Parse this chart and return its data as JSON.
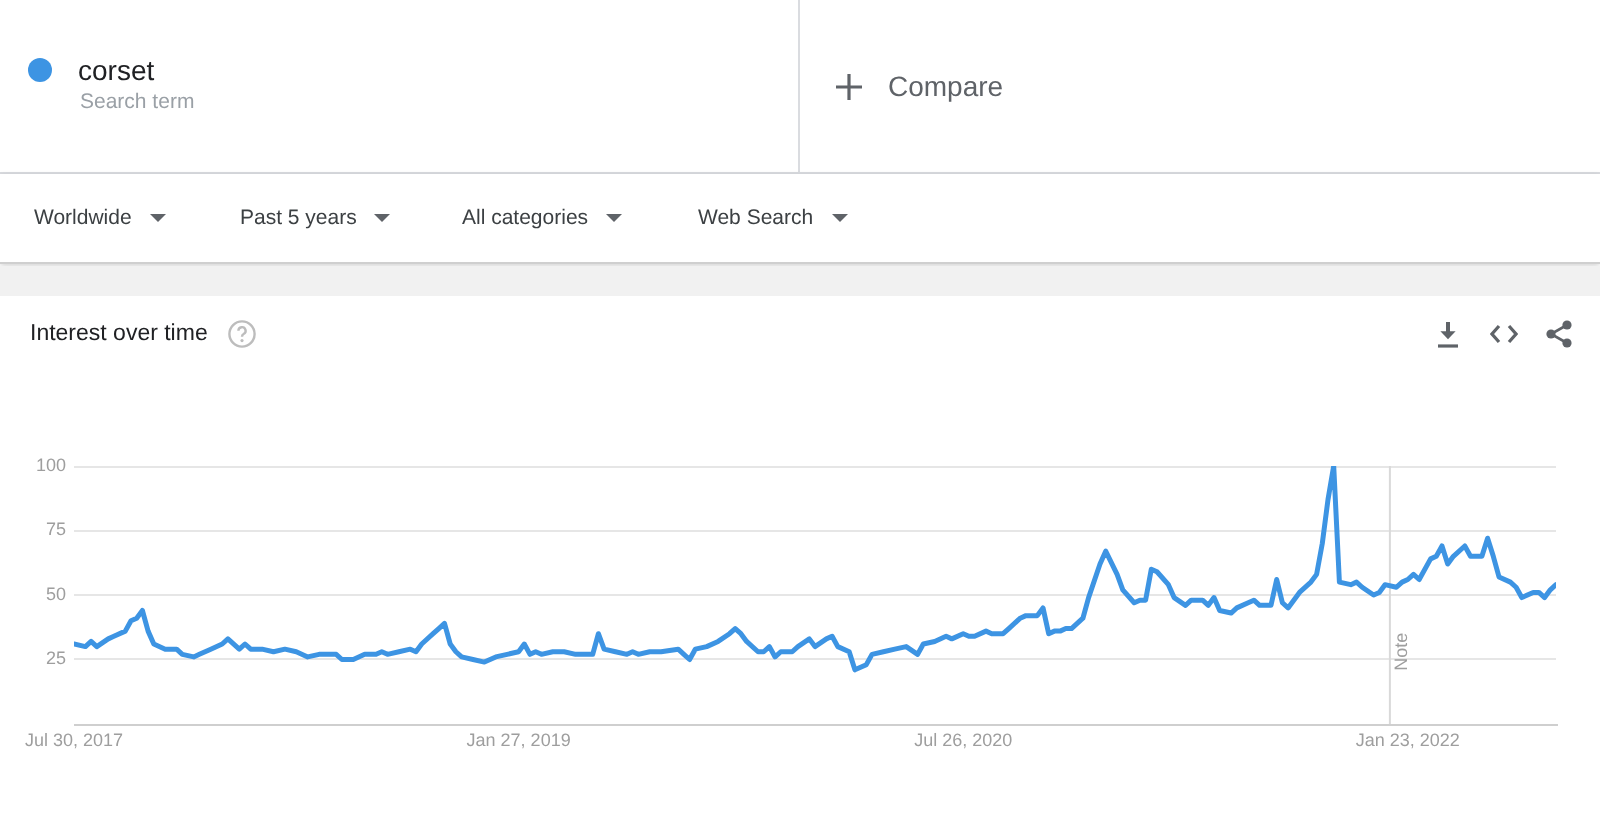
{
  "chart_data": {
    "type": "line",
    "title": "Interest over time",
    "x": [
      "2017-07-30",
      "2017-08-13",
      "2017-08-20",
      "2017-08-27",
      "2017-09-10",
      "2017-09-17",
      "2017-10-01",
      "2017-10-08",
      "2017-10-15",
      "2017-10-22",
      "2017-10-29",
      "2017-11-05",
      "2017-11-19",
      "2017-12-03",
      "2017-12-10",
      "2017-12-24",
      "2017-12-31",
      "2018-01-14",
      "2018-01-28",
      "2018-02-04",
      "2018-02-18",
      "2018-02-25",
      "2018-03-04",
      "2018-03-18",
      "2018-04-01",
      "2018-04-15",
      "2018-04-29",
      "2018-05-13",
      "2018-05-27",
      "2018-06-17",
      "2018-06-24",
      "2018-07-08",
      "2018-07-22",
      "2018-08-05",
      "2018-08-12",
      "2018-08-19",
      "2018-09-02",
      "2018-09-16",
      "2018-09-23",
      "2018-09-30",
      "2018-10-14",
      "2018-10-21",
      "2018-10-28",
      "2018-11-04",
      "2018-11-11",
      "2018-11-18",
      "2018-12-02",
      "2018-12-16",
      "2018-12-30",
      "2019-01-13",
      "2019-01-27",
      "2019-02-03",
      "2019-02-10",
      "2019-02-17",
      "2019-02-24",
      "2019-03-10",
      "2019-03-24",
      "2019-04-07",
      "2019-04-28",
      "2019-05-05",
      "2019-05-12",
      "2019-05-26",
      "2019-06-09",
      "2019-06-16",
      "2019-06-23",
      "2019-07-07",
      "2019-07-21",
      "2019-08-11",
      "2019-08-18",
      "2019-08-25",
      "2019-09-01",
      "2019-09-15",
      "2019-09-29",
      "2019-10-13",
      "2019-10-20",
      "2019-10-27",
      "2019-11-03",
      "2019-11-17",
      "2019-11-24",
      "2019-12-01",
      "2019-12-08",
      "2019-12-15",
      "2019-12-29",
      "2020-01-05",
      "2020-01-19",
      "2020-01-26",
      "2020-02-09",
      "2020-02-16",
      "2020-02-23",
      "2020-03-08",
      "2020-03-15",
      "2020-03-29",
      "2020-04-05",
      "2020-04-19",
      "2020-05-03",
      "2020-05-17",
      "2020-05-31",
      "2020-06-07",
      "2020-06-21",
      "2020-07-05",
      "2020-07-12",
      "2020-07-26",
      "2020-08-02",
      "2020-08-09",
      "2020-08-23",
      "2020-08-30",
      "2020-09-13",
      "2020-09-20",
      "2020-10-04",
      "2020-10-11",
      "2020-10-25",
      "2020-11-01",
      "2020-11-08",
      "2020-11-15",
      "2020-11-22",
      "2020-11-29",
      "2020-12-06",
      "2020-12-13",
      "2020-12-20",
      "2020-12-27",
      "2021-01-10",
      "2021-01-17",
      "2021-01-31",
      "2021-02-07",
      "2021-02-21",
      "2021-02-28",
      "2021-03-07",
      "2021-03-14",
      "2021-03-21",
      "2021-04-04",
      "2021-04-11",
      "2021-04-25",
      "2021-05-02",
      "2021-05-16",
      "2021-05-23",
      "2021-05-30",
      "2021-06-06",
      "2021-06-20",
      "2021-06-27",
      "2021-07-11",
      "2021-07-18",
      "2021-07-25",
      "2021-08-08",
      "2021-08-15",
      "2021-08-22",
      "2021-08-29",
      "2021-09-12",
      "2021-09-26",
      "2021-10-03",
      "2021-10-10",
      "2021-10-17",
      "2021-10-24",
      "2021-10-31",
      "2021-11-14",
      "2021-11-21",
      "2021-11-28",
      "2021-12-12",
      "2021-12-19",
      "2021-12-26",
      "2022-01-09",
      "2022-01-16",
      "2022-01-23",
      "2022-01-30",
      "2022-02-06",
      "2022-02-20",
      "2022-02-27",
      "2022-03-06",
      "2022-03-13",
      "2022-03-20",
      "2022-04-03",
      "2022-04-10",
      "2022-04-24",
      "2022-05-01",
      "2022-05-08",
      "2022-05-15",
      "2022-05-29",
      "2022-06-05",
      "2022-06-12",
      "2022-06-26",
      "2022-07-03",
      "2022-07-10",
      "2022-07-17",
      "2022-07-24"
    ],
    "series": [
      {
        "name": "corset",
        "color": "#3d94e3",
        "values": [
          31,
          30,
          32,
          30,
          33,
          34,
          36,
          40,
          41,
          44,
          36,
          31,
          29,
          29,
          27,
          26,
          27,
          29,
          31,
          33,
          29,
          31,
          29,
          29,
          28,
          29,
          28,
          26,
          27,
          27,
          25,
          25,
          27,
          27,
          28,
          27,
          28,
          29,
          28,
          31,
          35,
          37,
          39,
          31,
          28,
          26,
          25,
          24,
          26,
          27,
          28,
          31,
          27,
          28,
          27,
          28,
          28,
          27,
          27,
          35,
          29,
          28,
          27,
          28,
          27,
          28,
          28,
          29,
          27,
          25,
          29,
          30,
          32,
          35,
          37,
          35,
          32,
          28,
          28,
          30,
          26,
          28,
          28,
          30,
          33,
          30,
          33,
          34,
          30,
          28,
          21,
          23,
          27,
          28,
          29,
          30,
          27,
          31,
          32,
          34,
          33,
          35,
          34,
          34,
          36,
          35,
          35,
          37,
          41,
          42,
          42,
          45,
          35,
          36,
          36,
          37,
          37,
          39,
          41,
          49,
          62,
          67,
          58,
          52,
          47,
          48,
          48,
          60,
          59,
          54,
          49,
          46,
          48,
          48,
          46,
          49,
          44,
          43,
          45,
          47,
          48,
          46,
          46,
          56,
          47,
          45,
          51,
          55,
          58,
          70,
          87,
          100,
          55,
          54,
          55,
          53,
          50,
          51,
          54,
          53,
          55,
          56,
          58,
          56,
          64,
          65,
          69,
          62,
          65,
          69,
          65,
          65,
          72,
          65,
          57,
          55,
          53,
          49,
          51,
          51,
          49,
          52,
          54
        ]
      }
    ],
    "xlim": [
      "2017-07-30",
      "2022-07-24"
    ],
    "xticks": [
      {
        "value": "2017-07-30",
        "label": "Jul 30, 2017"
      },
      {
        "value": "2019-01-27",
        "label": "Jan 27, 2019"
      },
      {
        "value": "2020-07-26",
        "label": "Jul 26, 2020"
      },
      {
        "value": "2022-01-23",
        "label": "Jan 23, 2022"
      }
    ],
    "ylim": [
      0,
      100
    ],
    "yticks": [
      25,
      50,
      75,
      100
    ],
    "grid": "y",
    "legend": "top left",
    "ref_lines": [
      {
        "axis": "x",
        "value": "2022-01-01",
        "label": "Note",
        "color": "#d9d9d9"
      }
    ],
    "annotations": [
      "Search term",
      "Compare",
      "Worldwide",
      "Past 5 years",
      "All categories",
      "Web Search"
    ]
  }
}
